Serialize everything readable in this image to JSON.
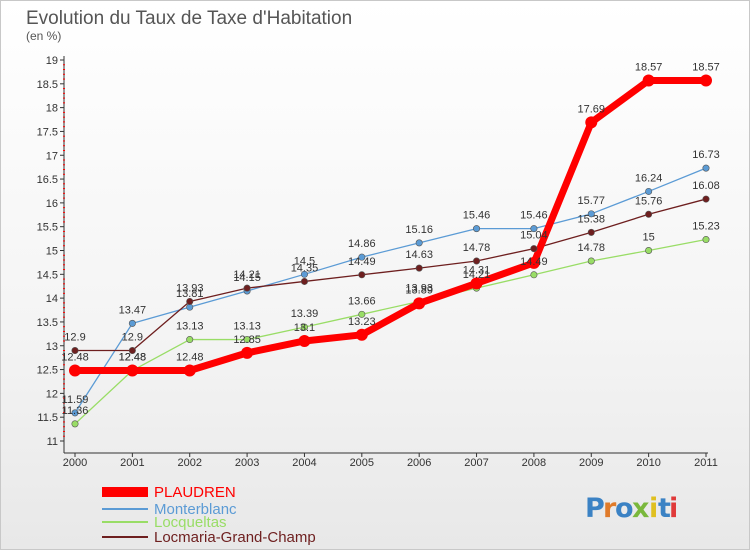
{
  "chart_data": {
    "type": "line",
    "title": "Evolution du Taux de Taxe d'Habitation",
    "subtitle": "(en %)",
    "x": [
      "2000",
      "2001",
      "2002",
      "2003",
      "2004",
      "2005",
      "2006",
      "2007",
      "2008",
      "2009",
      "2010",
      "2011"
    ],
    "ylim": [
      11,
      19
    ],
    "yticks": [
      "11",
      "11.5",
      "12",
      "12.5",
      "13",
      "13.5",
      "14",
      "14.5",
      "15",
      "15.5",
      "16",
      "16.5",
      "17",
      "17.5",
      "18",
      "18.5",
      "19"
    ],
    "grid": false,
    "legend_position": "bottom-left",
    "series": [
      {
        "name": "PLAUDREN",
        "color": "#ff0000",
        "values": [
          12.48,
          12.48,
          12.48,
          12.85,
          13.1,
          13.23,
          13.89,
          14.31,
          14.74,
          17.69,
          18.57,
          18.57
        ],
        "labels": [
          "12.48",
          "12.48",
          "12.48",
          "12.85",
          "13.1",
          "13.23",
          "13.89",
          "14.31",
          "",
          "17.69",
          "18.57",
          "18.57"
        ]
      },
      {
        "name": "Monterblanc",
        "color": "#5b9bd5",
        "values": [
          11.59,
          13.47,
          13.81,
          14.15,
          14.5,
          14.86,
          15.16,
          15.46,
          15.46,
          15.77,
          16.24,
          16.73
        ],
        "labels": [
          "11.59",
          "13.47",
          "13.81",
          "14.15",
          "14.5",
          "14.86",
          "15.16",
          "15.46",
          "15.46",
          "15.77",
          "16.24",
          "16.73"
        ]
      },
      {
        "name": "Locqueltas",
        "color": "#99dd66",
        "values": [
          11.36,
          12.48,
          13.13,
          13.13,
          13.39,
          13.66,
          13.93,
          14.21,
          14.49,
          14.78,
          15.0,
          15.23
        ],
        "labels": [
          "11.36",
          "12.48",
          "13.13",
          "13.13",
          "13.39",
          "13.66",
          "13.93",
          "14.21",
          "14.49",
          "14.78",
          "15",
          "15.23"
        ]
      },
      {
        "name": "Locmaria-Grand-Champ",
        "color": "#6e1f1f",
        "values": [
          12.9,
          12.9,
          13.93,
          14.21,
          14.35,
          14.49,
          14.63,
          14.78,
          15.04,
          15.38,
          15.76,
          16.08
        ],
        "labels": [
          "12.9",
          "12.9",
          "13.93",
          "14.21",
          "14.35",
          "14.49",
          "14.63",
          "14.78",
          "15.04",
          "15.38",
          "15.76",
          "16.08"
        ]
      }
    ]
  },
  "logo": {
    "text": "Proxiti"
  }
}
